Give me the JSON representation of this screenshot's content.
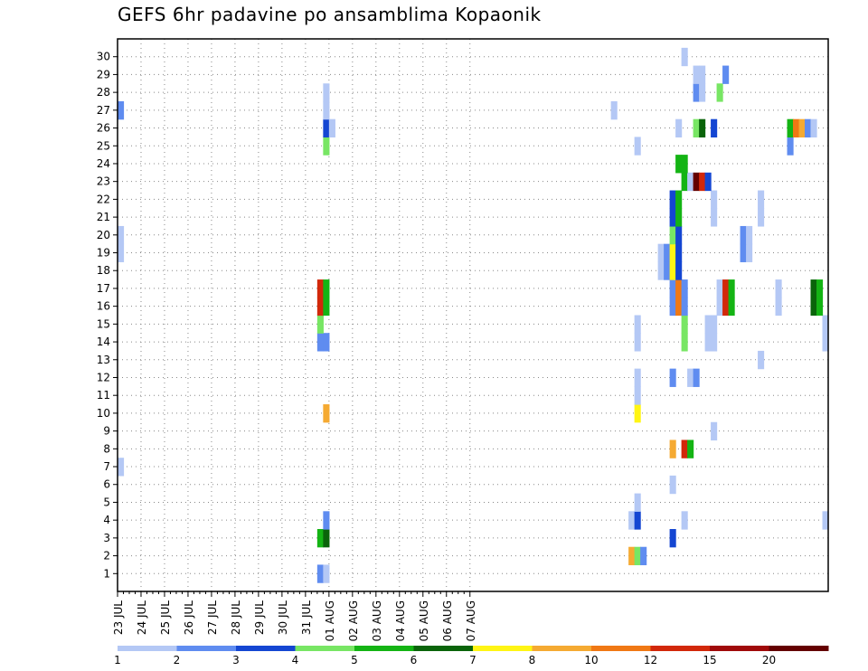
{
  "chart_data": {
    "type": "heatmap",
    "title": "GEFS 6hr padavine po ansamblima Kopaonik",
    "xlabel": "",
    "ylabel": "",
    "x_tick_labels": [
      "23 JUL",
      "24 JUL",
      "25 JUL",
      "26 JUL",
      "27 JUL",
      "28 JUL",
      "29 JUL",
      "30 JUL",
      "31 JUL",
      "01 AUG",
      "02 AUG",
      "03 AUG",
      "04 AUG",
      "05 AUG",
      "06 AUG",
      "07 AUG"
    ],
    "x_start": "23 JUL 00Z",
    "x_step_hours": 6,
    "y_members": [
      1,
      2,
      3,
      4,
      5,
      6,
      7,
      8,
      9,
      10,
      11,
      12,
      13,
      14,
      15,
      16,
      17,
      18,
      19,
      20,
      21,
      22,
      23,
      24,
      25,
      26,
      27,
      28,
      29,
      30
    ],
    "grid": true,
    "colorbar": {
      "levels": [
        1,
        2,
        3,
        4,
        5,
        6,
        7,
        8,
        10,
        12,
        15,
        20
      ],
      "colors": [
        "#b4c8f5",
        "#5f8cf0",
        "#1446d2",
        "#78e664",
        "#14b414",
        "#0a640a",
        "#fff514",
        "#f5aa32",
        "#f07814",
        "#d2280a",
        "#a00a0a",
        "#640000"
      ]
    },
    "cells": [
      {
        "member": 1,
        "step": 34,
        "class": 1
      },
      {
        "member": 1,
        "step": 35,
        "class": 0
      },
      {
        "member": 2,
        "step": 87,
        "class": 7
      },
      {
        "member": 2,
        "step": 88,
        "class": 3
      },
      {
        "member": 2,
        "step": 89,
        "class": 1
      },
      {
        "member": 3,
        "step": 34,
        "class": 4
      },
      {
        "member": 3,
        "step": 35,
        "class": 5
      },
      {
        "member": 3,
        "step": 94,
        "class": 2
      },
      {
        "member": 4,
        "step": 35,
        "class": 1
      },
      {
        "member": 4,
        "step": 87,
        "class": 0
      },
      {
        "member": 4,
        "step": 88,
        "class": 2
      },
      {
        "member": 4,
        "step": 96,
        "class": 0
      },
      {
        "member": 4,
        "step": 120,
        "class": 0
      },
      {
        "member": 5,
        "step": 88,
        "class": 0
      },
      {
        "member": 6,
        "step": 94,
        "class": 0
      },
      {
        "member": 7,
        "step": 0,
        "class": 0
      },
      {
        "member": 8,
        "step": 94,
        "class": 7
      },
      {
        "member": 8,
        "step": 96,
        "class": 9
      },
      {
        "member": 8,
        "step": 97,
        "class": 4
      },
      {
        "member": 9,
        "step": 101,
        "class": 0
      },
      {
        "member": 10,
        "step": 35,
        "class": 7
      },
      {
        "member": 10,
        "step": 88,
        "class": 6
      },
      {
        "member": 11,
        "step": 88,
        "class": 0
      },
      {
        "member": 12,
        "step": 88,
        "class": 0
      },
      {
        "member": 12,
        "step": 94,
        "class": 1
      },
      {
        "member": 12,
        "step": 97,
        "class": 0
      },
      {
        "member": 12,
        "step": 98,
        "class": 1
      },
      {
        "member": 13,
        "step": 109,
        "class": 0
      },
      {
        "member": 14,
        "step": 34,
        "class": 1
      },
      {
        "member": 14,
        "step": 35,
        "class": 1
      },
      {
        "member": 14,
        "step": 88,
        "class": 0
      },
      {
        "member": 14,
        "step": 96,
        "class": 3
      },
      {
        "member": 14,
        "step": 100,
        "class": 0
      },
      {
        "member": 14,
        "step": 101,
        "class": 0
      },
      {
        "member": 14,
        "step": 120,
        "class": 0
      },
      {
        "member": 15,
        "step": 34,
        "class": 3
      },
      {
        "member": 15,
        "step": 88,
        "class": 0
      },
      {
        "member": 15,
        "step": 96,
        "class": 3
      },
      {
        "member": 15,
        "step": 100,
        "class": 0
      },
      {
        "member": 15,
        "step": 101,
        "class": 0
      },
      {
        "member": 15,
        "step": 120,
        "class": 0
      },
      {
        "member": 16,
        "step": 34,
        "class": 9
      },
      {
        "member": 16,
        "step": 35,
        "class": 4
      },
      {
        "member": 16,
        "step": 94,
        "class": 1
      },
      {
        "member": 16,
        "step": 95,
        "class": 8
      },
      {
        "member": 16,
        "step": 96,
        "class": 1
      },
      {
        "member": 16,
        "step": 102,
        "class": 0
      },
      {
        "member": 16,
        "step": 103,
        "class": 9
      },
      {
        "member": 16,
        "step": 104,
        "class": 4
      },
      {
        "member": 16,
        "step": 112,
        "class": 0
      },
      {
        "member": 16,
        "step": 118,
        "class": 5
      },
      {
        "member": 16,
        "step": 119,
        "class": 4
      },
      {
        "member": 17,
        "step": 34,
        "class": 9
      },
      {
        "member": 17,
        "step": 35,
        "class": 4
      },
      {
        "member": 17,
        "step": 94,
        "class": 1
      },
      {
        "member": 17,
        "step": 95,
        "class": 8
      },
      {
        "member": 17,
        "step": 96,
        "class": 1
      },
      {
        "member": 17,
        "step": 102,
        "class": 0
      },
      {
        "member": 17,
        "step": 103,
        "class": 9
      },
      {
        "member": 17,
        "step": 104,
        "class": 4
      },
      {
        "member": 17,
        "step": 112,
        "class": 0
      },
      {
        "member": 17,
        "step": 118,
        "class": 5
      },
      {
        "member": 17,
        "step": 119,
        "class": 4
      },
      {
        "member": 18,
        "step": 92,
        "class": 0
      },
      {
        "member": 18,
        "step": 93,
        "class": 1
      },
      {
        "member": 18,
        "step": 94,
        "class": 6
      },
      {
        "member": 18,
        "step": 95,
        "class": 2
      },
      {
        "member": 19,
        "step": 0,
        "class": 0
      },
      {
        "member": 19,
        "step": 92,
        "class": 0
      },
      {
        "member": 19,
        "step": 93,
        "class": 1
      },
      {
        "member": 19,
        "step": 94,
        "class": 6
      },
      {
        "member": 19,
        "step": 95,
        "class": 2
      },
      {
        "member": 19,
        "step": 106,
        "class": 1
      },
      {
        "member": 19,
        "step": 107,
        "class": 0
      },
      {
        "member": 20,
        "step": 0,
        "class": 0
      },
      {
        "member": 20,
        "step": 94,
        "class": 3
      },
      {
        "member": 20,
        "step": 95,
        "class": 2
      },
      {
        "member": 20,
        "step": 106,
        "class": 1
      },
      {
        "member": 20,
        "step": 107,
        "class": 0
      },
      {
        "member": 21,
        "step": 94,
        "class": 2
      },
      {
        "member": 21,
        "step": 95,
        "class": 4
      },
      {
        "member": 21,
        "step": 101,
        "class": 0
      },
      {
        "member": 21,
        "step": 109,
        "class": 0
      },
      {
        "member": 22,
        "step": 94,
        "class": 2
      },
      {
        "member": 22,
        "step": 95,
        "class": 4
      },
      {
        "member": 22,
        "step": 101,
        "class": 0
      },
      {
        "member": 22,
        "step": 109,
        "class": 0
      },
      {
        "member": 23,
        "step": 96,
        "class": 4
      },
      {
        "member": 23,
        "step": 97,
        "class": 0
      },
      {
        "member": 23,
        "step": 98,
        "class": 11
      },
      {
        "member": 23,
        "step": 99,
        "class": 9
      },
      {
        "member": 23,
        "step": 100,
        "class": 2
      },
      {
        "member": 24,
        "step": 95,
        "class": 4
      },
      {
        "member": 24,
        "step": 96,
        "class": 4
      },
      {
        "member": 25,
        "step": 35,
        "class": 3
      },
      {
        "member": 25,
        "step": 88,
        "class": 0
      },
      {
        "member": 25,
        "step": 114,
        "class": 1
      },
      {
        "member": 26,
        "step": 35,
        "class": 2
      },
      {
        "member": 26,
        "step": 36,
        "class": 0
      },
      {
        "member": 26,
        "step": 95,
        "class": 0
      },
      {
        "member": 26,
        "step": 98,
        "class": 3
      },
      {
        "member": 26,
        "step": 99,
        "class": 5
      },
      {
        "member": 26,
        "step": 101,
        "class": 2
      },
      {
        "member": 26,
        "step": 114,
        "class": 4
      },
      {
        "member": 26,
        "step": 115,
        "class": 8
      },
      {
        "member": 26,
        "step": 116,
        "class": 7
      },
      {
        "member": 26,
        "step": 117,
        "class": 1
      },
      {
        "member": 26,
        "step": 118,
        "class": 0
      },
      {
        "member": 27,
        "step": 0,
        "class": 1
      },
      {
        "member": 27,
        "step": 35,
        "class": 0
      },
      {
        "member": 27,
        "step": 84,
        "class": 0
      },
      {
        "member": 28,
        "step": 35,
        "class": 0
      },
      {
        "member": 28,
        "step": 98,
        "class": 1
      },
      {
        "member": 28,
        "step": 99,
        "class": 0
      },
      {
        "member": 28,
        "step": 102,
        "class": 3
      },
      {
        "member": 29,
        "step": 98,
        "class": 0
      },
      {
        "member": 29,
        "step": 99,
        "class": 0
      },
      {
        "member": 29,
        "step": 103,
        "class": 1
      },
      {
        "member": 30,
        "step": 96,
        "class": 0
      }
    ]
  }
}
